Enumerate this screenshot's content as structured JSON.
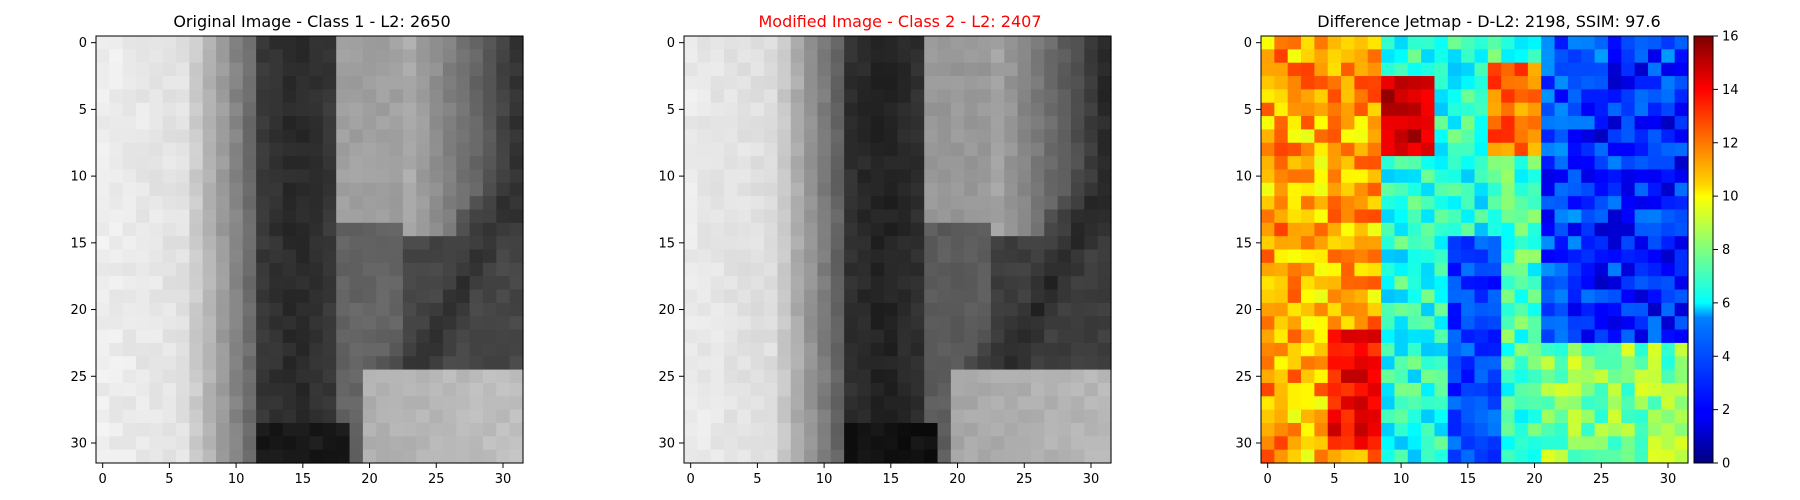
{
  "chart_data": [
    {
      "type": "heatmap",
      "title": "Original Image - Class 1 - L2: 2650",
      "title_color": "#000000",
      "colormap": "gray",
      "grid_size": 32,
      "xticks": [
        0,
        5,
        10,
        15,
        20,
        25,
        30
      ],
      "yticks": [
        0,
        5,
        10,
        15,
        20,
        25,
        30
      ],
      "xlim": [
        -0.5,
        31.5
      ],
      "ylim": [
        31.5,
        -0.5
      ],
      "value_range": [
        0,
        255
      ]
    },
    {
      "type": "heatmap",
      "title": "Modified Image - Class 2 - L2: 2407",
      "title_color": "#ff0000",
      "colormap": "gray",
      "grid_size": 32,
      "xticks": [
        0,
        5,
        10,
        15,
        20,
        25,
        30
      ],
      "yticks": [
        0,
        5,
        10,
        15,
        20,
        25,
        30
      ],
      "xlim": [
        -0.5,
        31.5
      ],
      "ylim": [
        31.5,
        -0.5
      ],
      "value_range": [
        0,
        255
      ]
    },
    {
      "type": "heatmap",
      "title": "Difference Jetmap - D-L2: 2198, SSIM: 97.6",
      "title_color": "#000000",
      "colormap": "jet",
      "grid_size": 32,
      "xticks": [
        0,
        5,
        10,
        15,
        20,
        25,
        30
      ],
      "yticks": [
        0,
        5,
        10,
        15,
        20,
        25,
        30
      ],
      "xlim": [
        -0.5,
        31.5
      ],
      "ylim": [
        31.5,
        -0.5
      ],
      "value_range": [
        0,
        16
      ],
      "colorbar_ticks": [
        0,
        2,
        4,
        6,
        8,
        10,
        12,
        14,
        16
      ]
    }
  ]
}
